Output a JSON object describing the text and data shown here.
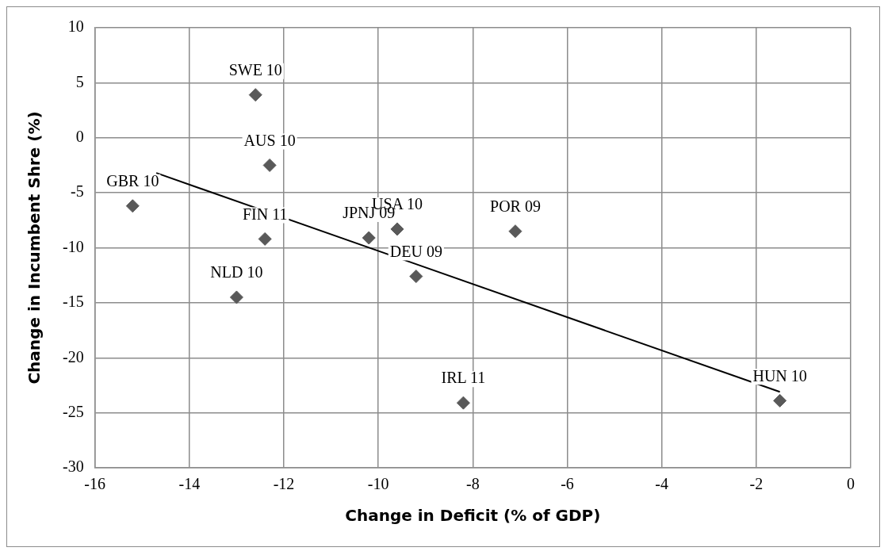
{
  "chart_data": {
    "type": "scatter",
    "xlabel": "Change in Deficit (% of GDP)",
    "ylabel": "Change in Incumbent Shre (%)",
    "xlim": [
      -16,
      0
    ],
    "xticks": [
      -16,
      -14,
      -12,
      -10,
      -8,
      -6,
      -4,
      -2,
      0
    ],
    "ylim": [
      -30,
      10
    ],
    "yticks": [
      -30,
      -25,
      -20,
      -15,
      -10,
      -5,
      0,
      5,
      10
    ],
    "grid": true,
    "legend": false,
    "marker": "diamond",
    "series": [
      {
        "color": "#595959",
        "x": [
          -12.6,
          -12.3,
          -15.2,
          -12.4,
          -10.2,
          -9.6,
          -9.2,
          -7.1,
          -13.0,
          -8.2,
          -1.5
        ],
        "values": [
          3.9,
          -2.5,
          -6.2,
          -9.2,
          -9.1,
          -8.3,
          -12.6,
          -8.5,
          -14.5,
          -24.1,
          -23.9
        ]
      },
      {
        "type": "line",
        "color": "#000000",
        "marker": "none",
        "line_style": "solid",
        "x": [
          -14.7,
          -1.5
        ],
        "values": [
          -3.2,
          -23.1
        ]
      }
    ],
    "annotations": [
      {
        "text": "SWE 10",
        "x": -12.6,
        "y": 3.9
      },
      {
        "text": "AUS 10",
        "x": -12.3,
        "y": -2.5
      },
      {
        "text": "GBR 10",
        "x": -15.2,
        "y": -6.2
      },
      {
        "text": "FIN 11",
        "x": -12.4,
        "y": -9.2
      },
      {
        "text": "JPNJ 09",
        "x": -10.2,
        "y": -9.1
      },
      {
        "text": "USA 10",
        "x": -9.6,
        "y": -8.3
      },
      {
        "text": "DEU 09",
        "x": -9.2,
        "y": -12.6
      },
      {
        "text": "POR 09",
        "x": -7.1,
        "y": -8.5
      },
      {
        "text": "NLD 10",
        "x": -13.0,
        "y": -14.5
      },
      {
        "text": "IRL 11",
        "x": -8.2,
        "y": -24.1
      },
      {
        "text": "HUN 10",
        "x": -1.5,
        "y": -23.9
      }
    ]
  }
}
